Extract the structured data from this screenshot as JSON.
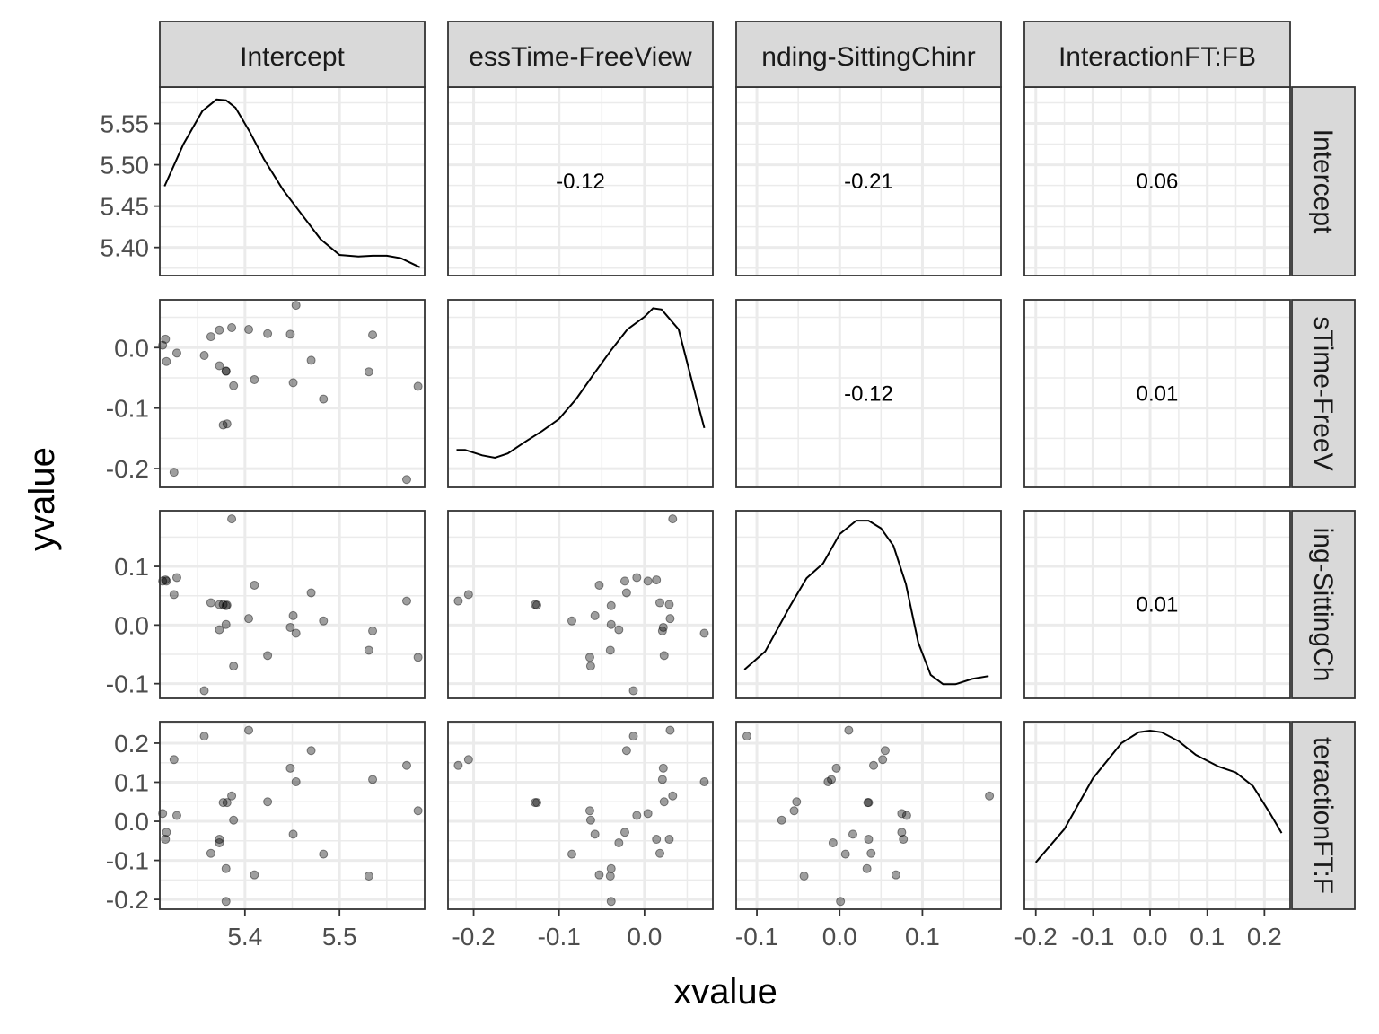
{
  "chart_data": {
    "type": "scatter",
    "layout": "pairs-matrix",
    "xlabel": "xvalue",
    "ylabel": "yvalue",
    "variables": [
      "Intercept",
      "ProcessTime-FreeView",
      "Standing-SittingChinrest",
      "InteractionFT:FB"
    ],
    "strip_labels": {
      "top": [
        "Intercept",
        "essTime-FreeView",
        "nding-SittingChinr",
        "InteractionFT:FB"
      ],
      "right": [
        "Intercept",
        "sTime-FreeV",
        "ing-SittingCh",
        "teractionFT:F"
      ]
    },
    "axes": {
      "x": [
        {
          "range": [
            5.31,
            5.59
          ],
          "ticks": [
            5.4,
            5.5
          ],
          "tick_labels": [
            "5.4",
            "5.5"
          ]
        },
        {
          "range": [
            -0.23,
            0.08
          ],
          "ticks": [
            -0.2,
            -0.1,
            0.0
          ],
          "tick_labels": [
            "-0.2",
            "-0.1",
            "0.0"
          ]
        },
        {
          "range": [
            -0.125,
            0.195
          ],
          "ticks": [
            -0.1,
            0.0,
            0.1
          ],
          "tick_labels": [
            "-0.1",
            "0.0",
            "0.1"
          ]
        },
        {
          "range": [
            -0.22,
            0.245
          ],
          "ticks": [
            -0.2,
            -0.1,
            0.0,
            0.1,
            0.2
          ],
          "tick_labels": [
            "-0.2",
            "-0.1",
            "0.0",
            "0.1",
            "0.2"
          ]
        }
      ],
      "y": [
        {
          "range": [
            5.366,
            5.594
          ],
          "ticks": [
            5.4,
            5.45,
            5.5,
            5.55
          ],
          "tick_labels": [
            "5.40",
            "5.45",
            "5.50",
            "5.55"
          ]
        },
        {
          "range": [
            -0.231,
            0.079
          ],
          "ticks": [
            -0.2,
            -0.1,
            0.0
          ],
          "tick_labels": [
            "-0.2",
            "-0.1",
            "0.0"
          ]
        },
        {
          "range": [
            -0.125,
            0.195
          ],
          "ticks": [
            -0.1,
            0.0,
            0.1
          ],
          "tick_labels": [
            "-0.1",
            "0.0",
            "0.1"
          ]
        },
        {
          "range": [
            -0.225,
            0.255
          ],
          "ticks": [
            -0.2,
            -0.1,
            0.0,
            0.1,
            0.2
          ],
          "tick_labels": [
            "-0.2",
            "-0.1",
            "0.0",
            "0.1",
            "0.2"
          ]
        }
      ]
    },
    "correlations": [
      {
        "row": 0,
        "col": 1,
        "label": "-0.12"
      },
      {
        "row": 0,
        "col": 2,
        "label": "-0.21"
      },
      {
        "row": 0,
        "col": 3,
        "label": "0.06"
      },
      {
        "row": 1,
        "col": 2,
        "label": "-0.12"
      },
      {
        "row": 1,
        "col": 3,
        "label": "0.01"
      },
      {
        "row": 2,
        "col": 3,
        "label": "0.01"
      }
    ],
    "densities": [
      {
        "x": [
          5.315,
          5.335,
          5.355,
          5.37,
          5.38,
          5.39,
          5.405,
          5.42,
          5.44,
          5.46,
          5.48,
          5.5,
          5.52,
          5.535,
          5.55,
          5.565,
          5.585
        ],
        "y": [
          5.474,
          5.525,
          5.565,
          5.579,
          5.578,
          5.569,
          5.54,
          5.507,
          5.47,
          5.44,
          5.41,
          5.391,
          5.389,
          5.39,
          5.39,
          5.387,
          5.376
        ]
      },
      {
        "x": [
          -0.22,
          -0.21,
          -0.19,
          -0.175,
          -0.16,
          -0.14,
          -0.12,
          -0.1,
          -0.08,
          -0.06,
          -0.04,
          -0.02,
          0.0,
          0.01,
          0.02,
          0.04,
          0.06,
          0.07
        ],
        "y": [
          -0.169,
          -0.169,
          -0.178,
          -0.182,
          -0.175,
          -0.156,
          -0.138,
          -0.118,
          -0.085,
          -0.045,
          -0.006,
          0.03,
          0.051,
          0.065,
          0.063,
          0.03,
          -0.08,
          -0.133
        ]
      },
      {
        "x": [
          -0.115,
          -0.09,
          -0.06,
          -0.04,
          -0.02,
          0.0,
          0.02,
          0.035,
          0.05,
          0.065,
          0.08,
          0.095,
          0.11,
          0.125,
          0.14,
          0.16,
          0.18
        ],
        "y": [
          -0.076,
          -0.045,
          0.032,
          0.08,
          0.105,
          0.155,
          0.178,
          0.178,
          0.165,
          0.135,
          0.07,
          -0.03,
          -0.085,
          -0.101,
          -0.101,
          -0.092,
          -0.087
        ]
      },
      {
        "x": [
          -0.2,
          -0.15,
          -0.1,
          -0.05,
          -0.02,
          0.0,
          0.02,
          0.05,
          0.08,
          0.12,
          0.15,
          0.18,
          0.21,
          0.23
        ],
        "y": [
          -0.105,
          -0.02,
          0.11,
          0.2,
          0.228,
          0.232,
          0.228,
          0.205,
          0.17,
          0.14,
          0.125,
          0.09,
          0.02,
          -0.03
        ]
      }
    ],
    "points": {
      "intercept": [
        5.313,
        5.316,
        5.317,
        5.325,
        5.328,
        5.357,
        5.364,
        5.373,
        5.373,
        5.377,
        5.38,
        5.38,
        5.381,
        5.386,
        5.388,
        5.404,
        5.41,
        5.424,
        5.448,
        5.451,
        5.454,
        5.47,
        5.483,
        5.531,
        5.535,
        5.571,
        5.583
      ],
      "time_fv": [
        0.004,
        0.014,
        -0.023,
        -0.206,
        -0.009,
        -0.013,
        0.018,
        0.029,
        -0.03,
        -0.128,
        -0.039,
        -0.039,
        -0.126,
        0.033,
        -0.063,
        0.03,
        -0.053,
        0.023,
        0.022,
        -0.058,
        0.07,
        -0.021,
        -0.085,
        -0.04,
        0.021,
        -0.218,
        -0.064
      ],
      "stand_sit": [
        0.075,
        0.077,
        0.075,
        0.052,
        0.081,
        -0.112,
        0.038,
        0.035,
        -0.008,
        0.035,
        0.033,
        0.001,
        0.034,
        0.181,
        -0.07,
        0.011,
        0.068,
        -0.052,
        -0.004,
        0.016,
        -0.014,
        0.055,
        0.007,
        -0.043,
        -0.01,
        0.041,
        -0.055
      ],
      "interaction": [
        0.02,
        -0.046,
        -0.028,
        0.158,
        0.015,
        0.218,
        -0.082,
        -0.046,
        -0.055,
        0.048,
        -0.121,
        -0.205,
        0.048,
        0.065,
        0.003,
        0.233,
        -0.137,
        0.05,
        0.136,
        -0.033,
        0.101,
        0.181,
        -0.084,
        -0.14,
        0.107,
        0.143,
        0.027
      ]
    }
  }
}
